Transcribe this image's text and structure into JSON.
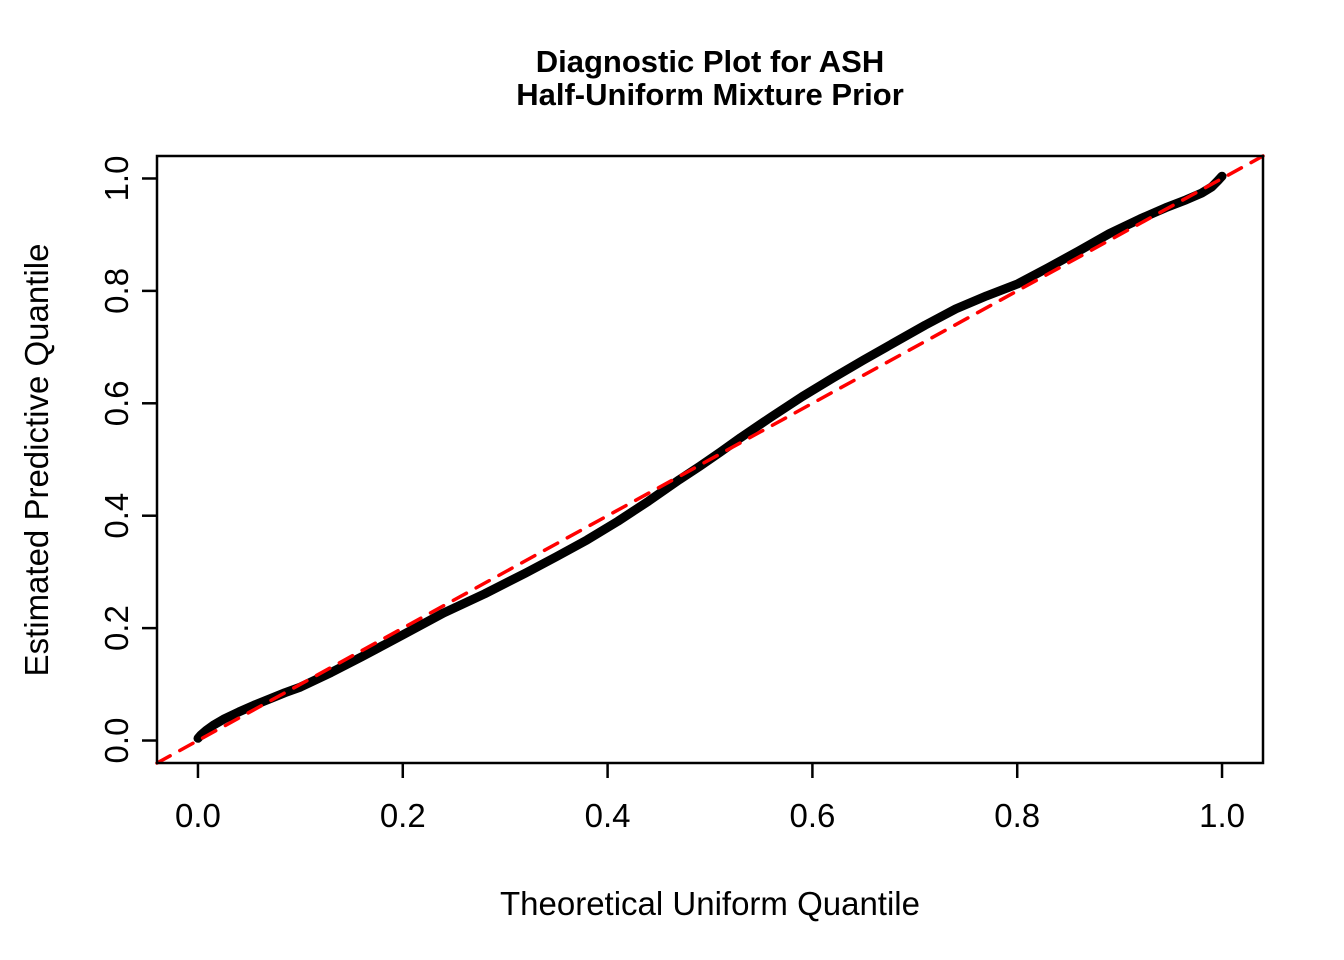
{
  "title": {
    "line1": "Diagnostic Plot for ASH",
    "line2": "Half-Uniform Mixture Prior"
  },
  "axes": {
    "x": {
      "label": "Theoretical Uniform Quantile",
      "tick_labels": [
        "0.0",
        "0.2",
        "0.4",
        "0.6",
        "0.8",
        "1.0"
      ],
      "tick_values": [
        0,
        0.2,
        0.4,
        0.6,
        0.8,
        1.0
      ],
      "range": [
        -0.04,
        1.04
      ]
    },
    "y": {
      "label": "Estimated Predictive Quantile",
      "tick_labels": [
        "0.0",
        "0.2",
        "0.4",
        "0.6",
        "0.8",
        "1.0"
      ],
      "tick_values": [
        0,
        0.2,
        0.4,
        0.6,
        0.8,
        1.0
      ],
      "range": [
        -0.04,
        1.04
      ]
    }
  },
  "colors": {
    "curve": "#000000",
    "reference_line": "#FF0000",
    "axis": "#000000",
    "background": "#FFFFFF"
  },
  "chart_data": {
    "type": "line",
    "title": "Diagnostic Plot for ASH\nHalf-Uniform Mixture Prior",
    "xlabel": "Theoretical Uniform Quantile",
    "ylabel": "Estimated Predictive Quantile",
    "xlim": [
      -0.04,
      1.04
    ],
    "ylim": [
      -0.04,
      1.04
    ],
    "grid": false,
    "legend": false,
    "series": [
      {
        "name": "estimated-predictive-quantile-curve",
        "type": "line",
        "color": "#000000",
        "stroke_width": 9,
        "dash": null,
        "points": [
          [
            0.0,
            0.004
          ],
          [
            0.003,
            0.01
          ],
          [
            0.008,
            0.018
          ],
          [
            0.015,
            0.027
          ],
          [
            0.025,
            0.038
          ],
          [
            0.04,
            0.051
          ],
          [
            0.055,
            0.063
          ],
          [
            0.07,
            0.074
          ],
          [
            0.085,
            0.085
          ],
          [
            0.1,
            0.095
          ],
          [
            0.13,
            0.121
          ],
          [
            0.16,
            0.149
          ],
          [
            0.2,
            0.188
          ],
          [
            0.24,
            0.227
          ],
          [
            0.28,
            0.261
          ],
          [
            0.32,
            0.298
          ],
          [
            0.35,
            0.327
          ],
          [
            0.38,
            0.357
          ],
          [
            0.41,
            0.39
          ],
          [
            0.44,
            0.426
          ],
          [
            0.47,
            0.464
          ],
          [
            0.49,
            0.488
          ],
          [
            0.51,
            0.513
          ],
          [
            0.53,
            0.539
          ],
          [
            0.56,
            0.576
          ],
          [
            0.59,
            0.612
          ],
          [
            0.62,
            0.645
          ],
          [
            0.65,
            0.677
          ],
          [
            0.68,
            0.708
          ],
          [
            0.71,
            0.739
          ],
          [
            0.74,
            0.768
          ],
          [
            0.77,
            0.791
          ],
          [
            0.8,
            0.812
          ],
          [
            0.83,
            0.841
          ],
          [
            0.86,
            0.871
          ],
          [
            0.89,
            0.902
          ],
          [
            0.92,
            0.928
          ],
          [
            0.945,
            0.948
          ],
          [
            0.965,
            0.962
          ],
          [
            0.98,
            0.974
          ],
          [
            0.99,
            0.985
          ],
          [
            0.996,
            0.996
          ],
          [
            1.0,
            1.004
          ]
        ]
      },
      {
        "name": "identity-reference-line",
        "type": "line",
        "color": "#FF0000",
        "stroke_width": 3.5,
        "dash": "15 11",
        "points": [
          [
            -0.04,
            -0.04
          ],
          [
            1.04,
            1.04
          ]
        ]
      }
    ]
  }
}
